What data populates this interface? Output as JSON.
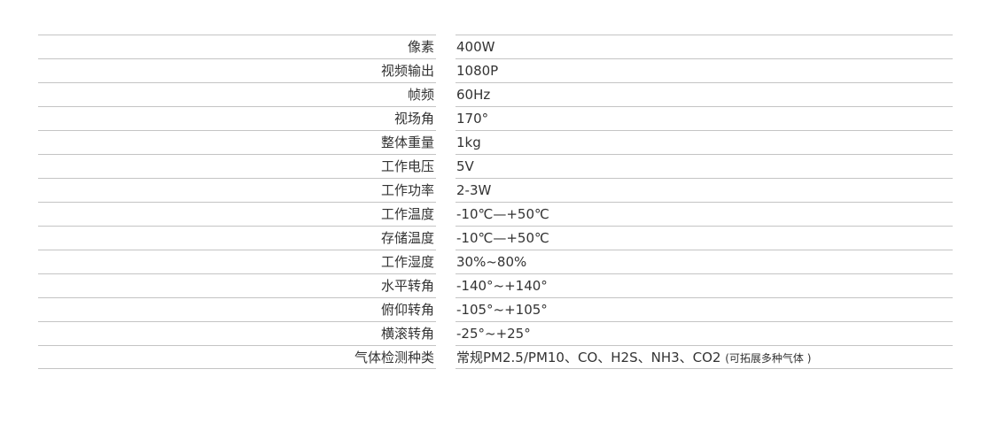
{
  "specs": [
    {
      "label": "像素",
      "value": "400W"
    },
    {
      "label": "视频输出",
      "value": "1080P"
    },
    {
      "label": "帧频",
      "value": "60Hz"
    },
    {
      "label": "视场角",
      "value": "170°"
    },
    {
      "label": "整体重量",
      "value": "1kg"
    },
    {
      "label": "工作电压",
      "value": "5V"
    },
    {
      "label": "工作功率",
      "value": "2-3W"
    },
    {
      "label": "工作温度",
      "value": "-10℃—+50℃"
    },
    {
      "label": "存储温度",
      "value": "-10℃—+50℃"
    },
    {
      "label": "工作湿度",
      "value": "30%~80%"
    },
    {
      "label": "水平转角",
      "value": "-140°~+140°"
    },
    {
      "label": "俯仰转角",
      "value": "-105°~+105°"
    },
    {
      "label": "横滚转角",
      "value": "-25°~+25°"
    },
    {
      "label": "气体检测种类",
      "value": "常规PM2.5/PM10、CO、H2S、NH3、CO2",
      "note": "(可拓展多种气体 )"
    }
  ]
}
